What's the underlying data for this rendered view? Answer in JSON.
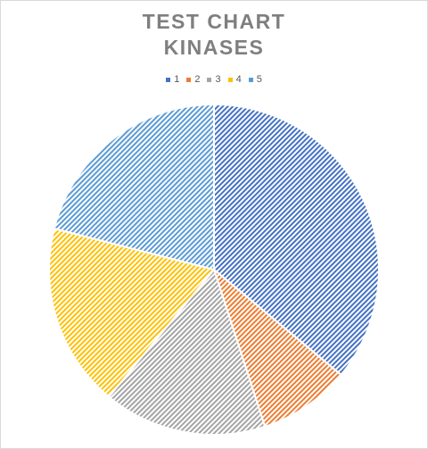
{
  "chart_data": {
    "type": "pie",
    "title_lines": [
      "TEST CHART",
      "KINASES"
    ],
    "categories": [
      "1",
      "2",
      "3",
      "4",
      "5"
    ],
    "values": [
      36,
      9,
      16,
      18,
      21
    ],
    "colors": [
      "#4472c4",
      "#ed7d31",
      "#a5a5a5",
      "#ffc000",
      "#5b9bd5"
    ],
    "pattern": "diagonal-stripes",
    "start_angle_deg": 0,
    "direction": "clockwise",
    "legend_position": "top"
  }
}
